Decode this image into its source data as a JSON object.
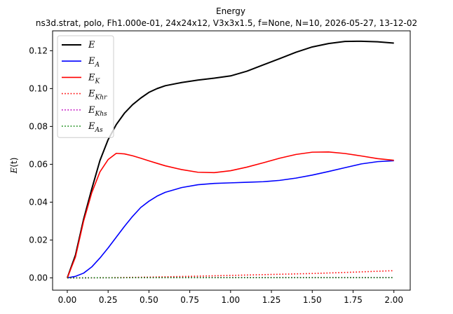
{
  "chart_data": {
    "type": "line",
    "title": "Energy",
    "subtitle": "ns3d.strat, polo, Fh1.000e-01, 24x24x12, V3x3x1.5, f=None, N=10, 2026-05-27, 13-12-02",
    "xlabel": "",
    "ylabel_main": "E",
    "ylabel_arg": "(t)",
    "xlim": [
      -0.09,
      2.1
    ],
    "ylim": [
      -0.0065,
      0.1305
    ],
    "x_ticks": [
      0.0,
      0.25,
      0.5,
      0.75,
      1.0,
      1.25,
      1.5,
      1.75,
      2.0
    ],
    "x_tick_labels": [
      "0.00",
      "0.25",
      "0.50",
      "0.75",
      "1.00",
      "1.25",
      "1.50",
      "1.75",
      "2.00"
    ],
    "y_ticks": [
      0.0,
      0.02,
      0.04,
      0.06,
      0.08,
      0.1,
      0.12
    ],
    "y_tick_labels": [
      "0.00",
      "0.02",
      "0.04",
      "0.06",
      "0.08",
      "0.10",
      "0.12"
    ],
    "grid": false,
    "legend_position": "top-left",
    "series": [
      {
        "name_main": "E",
        "name_sub": "",
        "color": "#000000",
        "style": "solid",
        "width": 2,
        "x": [
          0,
          0.05,
          0.1,
          0.15,
          0.2,
          0.25,
          0.3,
          0.35,
          0.4,
          0.45,
          0.5,
          0.55,
          0.6,
          0.7,
          0.8,
          0.9,
          1.0,
          1.1,
          1.2,
          1.3,
          1.4,
          1.5,
          1.6,
          1.7,
          1.8,
          1.9,
          2.0
        ],
        "y": [
          0,
          0.012,
          0.031,
          0.047,
          0.062,
          0.073,
          0.081,
          0.087,
          0.0915,
          0.095,
          0.098,
          0.1,
          0.1015,
          0.1032,
          0.1045,
          0.1055,
          0.1067,
          0.1092,
          0.1125,
          0.1158,
          0.1192,
          0.122,
          0.1238,
          0.1249,
          0.125,
          0.1247,
          0.124
        ]
      },
      {
        "name_main": "E",
        "name_sub": "A",
        "color": "#0000ff",
        "style": "solid",
        "width": 1.6,
        "x": [
          0,
          0.05,
          0.1,
          0.15,
          0.2,
          0.25,
          0.3,
          0.35,
          0.4,
          0.45,
          0.5,
          0.55,
          0.6,
          0.7,
          0.8,
          0.9,
          1.0,
          1.1,
          1.2,
          1.3,
          1.4,
          1.5,
          1.6,
          1.7,
          1.8,
          1.9,
          2.0
        ],
        "y": [
          0,
          0.0008,
          0.0025,
          0.0058,
          0.0105,
          0.0158,
          0.0215,
          0.0272,
          0.0325,
          0.0372,
          0.0405,
          0.0432,
          0.0452,
          0.0477,
          0.0492,
          0.0499,
          0.0502,
          0.0505,
          0.0508,
          0.0515,
          0.0527,
          0.0543,
          0.0562,
          0.0582,
          0.0602,
          0.0614,
          0.0619
        ]
      },
      {
        "name_main": "E",
        "name_sub": "K",
        "color": "#ff0000",
        "style": "solid",
        "width": 1.6,
        "x": [
          0,
          0.05,
          0.1,
          0.15,
          0.2,
          0.25,
          0.3,
          0.35,
          0.4,
          0.45,
          0.5,
          0.55,
          0.6,
          0.7,
          0.8,
          0.9,
          1.0,
          1.1,
          1.2,
          1.3,
          1.4,
          1.5,
          1.6,
          1.7,
          1.8,
          1.9,
          2.0
        ],
        "y": [
          0,
          0.011,
          0.03,
          0.045,
          0.056,
          0.0625,
          0.0658,
          0.0655,
          0.0645,
          0.0632,
          0.0618,
          0.0605,
          0.0592,
          0.0572,
          0.0558,
          0.0556,
          0.0566,
          0.0585,
          0.0608,
          0.0632,
          0.0652,
          0.0664,
          0.0665,
          0.0657,
          0.0644,
          0.063,
          0.0621
        ]
      },
      {
        "name_main": "E",
        "name_sub": "Khr",
        "color": "#ff0000",
        "style": "dotted",
        "width": 1.6,
        "x": [
          0,
          0.25,
          0.5,
          0.75,
          1.0,
          1.25,
          1.5,
          1.75,
          2.0
        ],
        "y": [
          0,
          0.0001,
          0.0004,
          0.0008,
          0.0013,
          0.0018,
          0.0023,
          0.003,
          0.0038
        ]
      },
      {
        "name_main": "E",
        "name_sub": "Khs",
        "color": "#bf00bf",
        "style": "dotted",
        "width": 1.6,
        "x": [
          0,
          0.5,
          1.0,
          1.5,
          2.0
        ],
        "y": [
          0,
          0.0001,
          0.0002,
          0.0002,
          0.0002
        ]
      },
      {
        "name_main": "E",
        "name_sub": "As",
        "color": "#008000",
        "style": "dotted",
        "width": 1.6,
        "x": [
          0,
          0.5,
          1.0,
          1.5,
          2.0
        ],
        "y": [
          0,
          0.0001,
          0.0001,
          0.0001,
          0.0001
        ]
      }
    ]
  }
}
